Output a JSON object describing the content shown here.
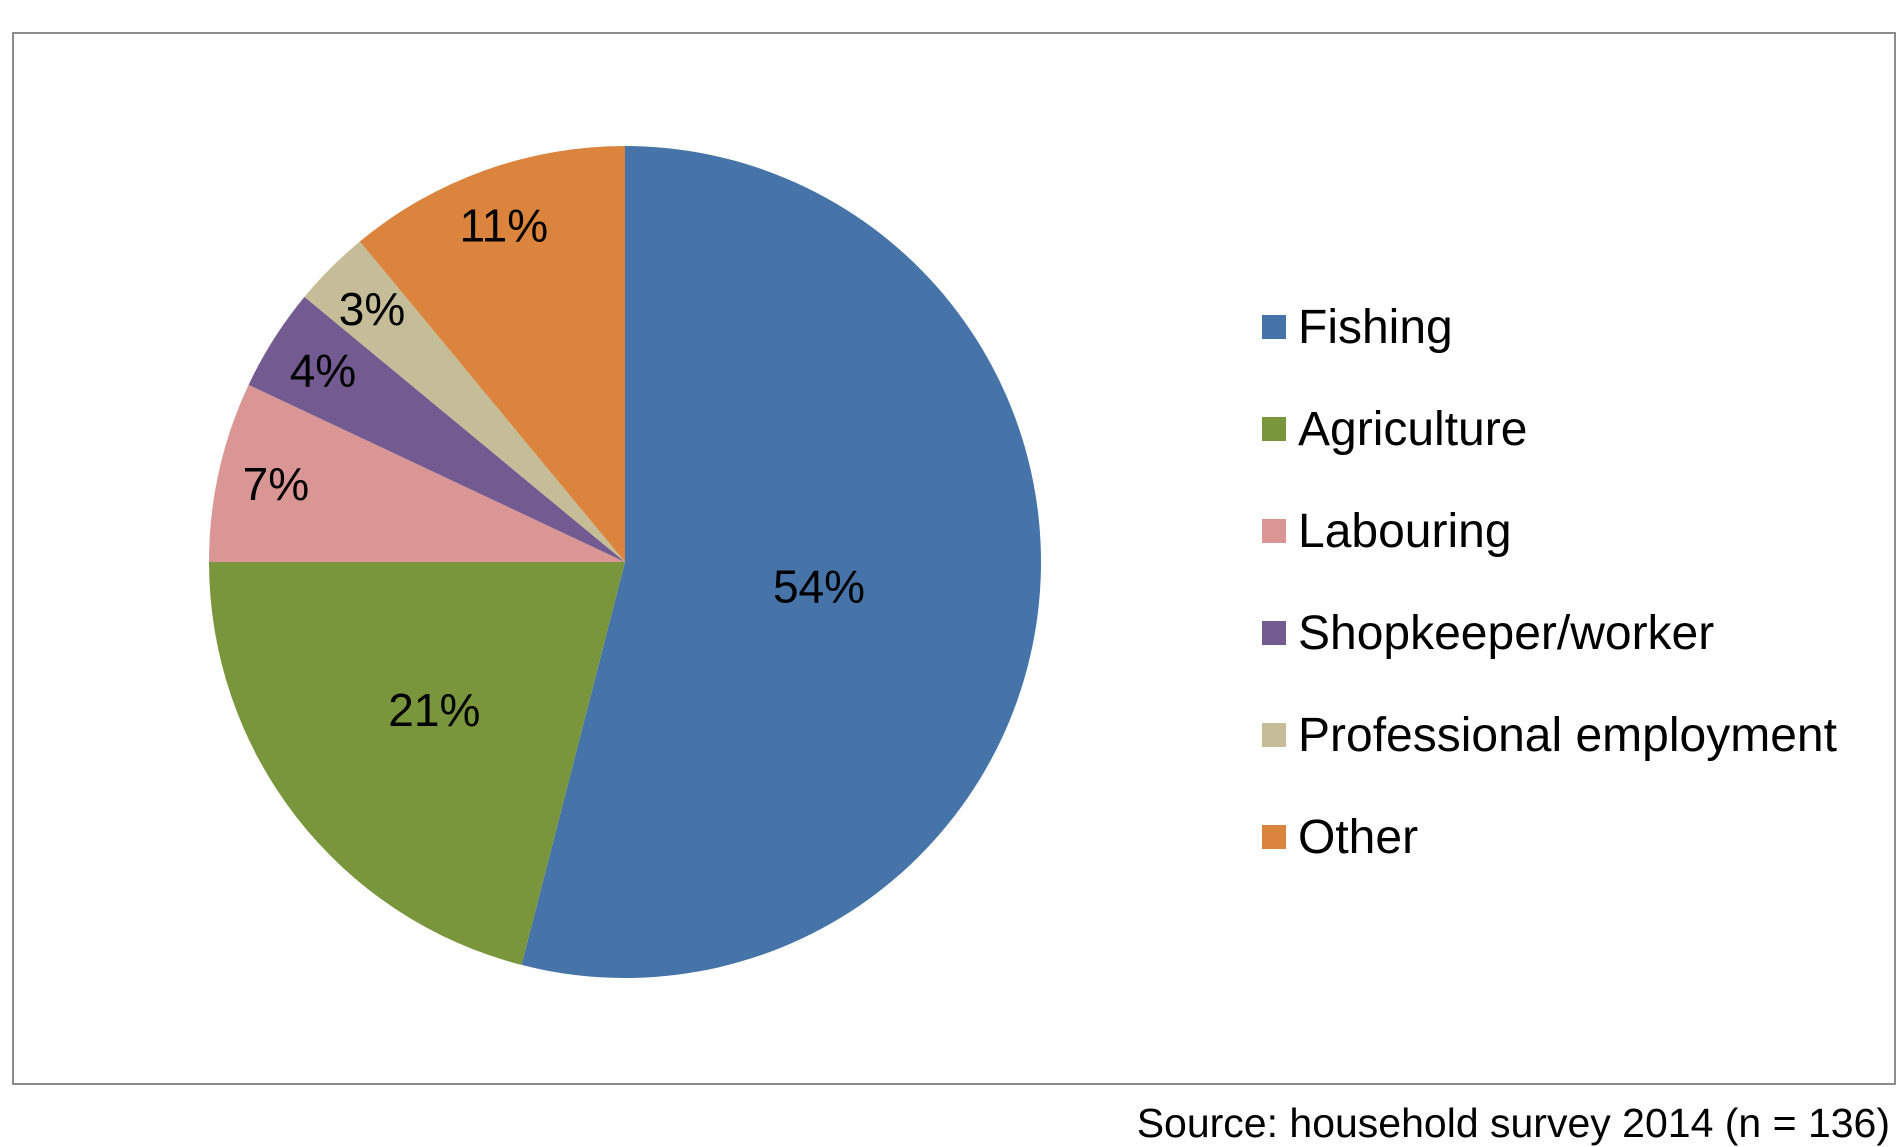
{
  "chart_data": {
    "type": "pie",
    "title": "",
    "categories": [
      "Fishing",
      "Agriculture",
      "Labouring",
      "Shopkeeper/worker",
      "Professional employment",
      "Other"
    ],
    "values": [
      54,
      21,
      7,
      4,
      3,
      11
    ],
    "data_labels": [
      "54%",
      "21%",
      "7%",
      "4%",
      "3%",
      "11%"
    ],
    "colors": [
      "#4674A8",
      "#7A963C",
      "#DA9694",
      "#735A91",
      "#C4BD97",
      "#DB843D"
    ],
    "legend_position": "right",
    "start_angle": "12 o'clock",
    "direction": "clockwise"
  },
  "source_note": "Source: household survey 2014 (n = 136)"
}
